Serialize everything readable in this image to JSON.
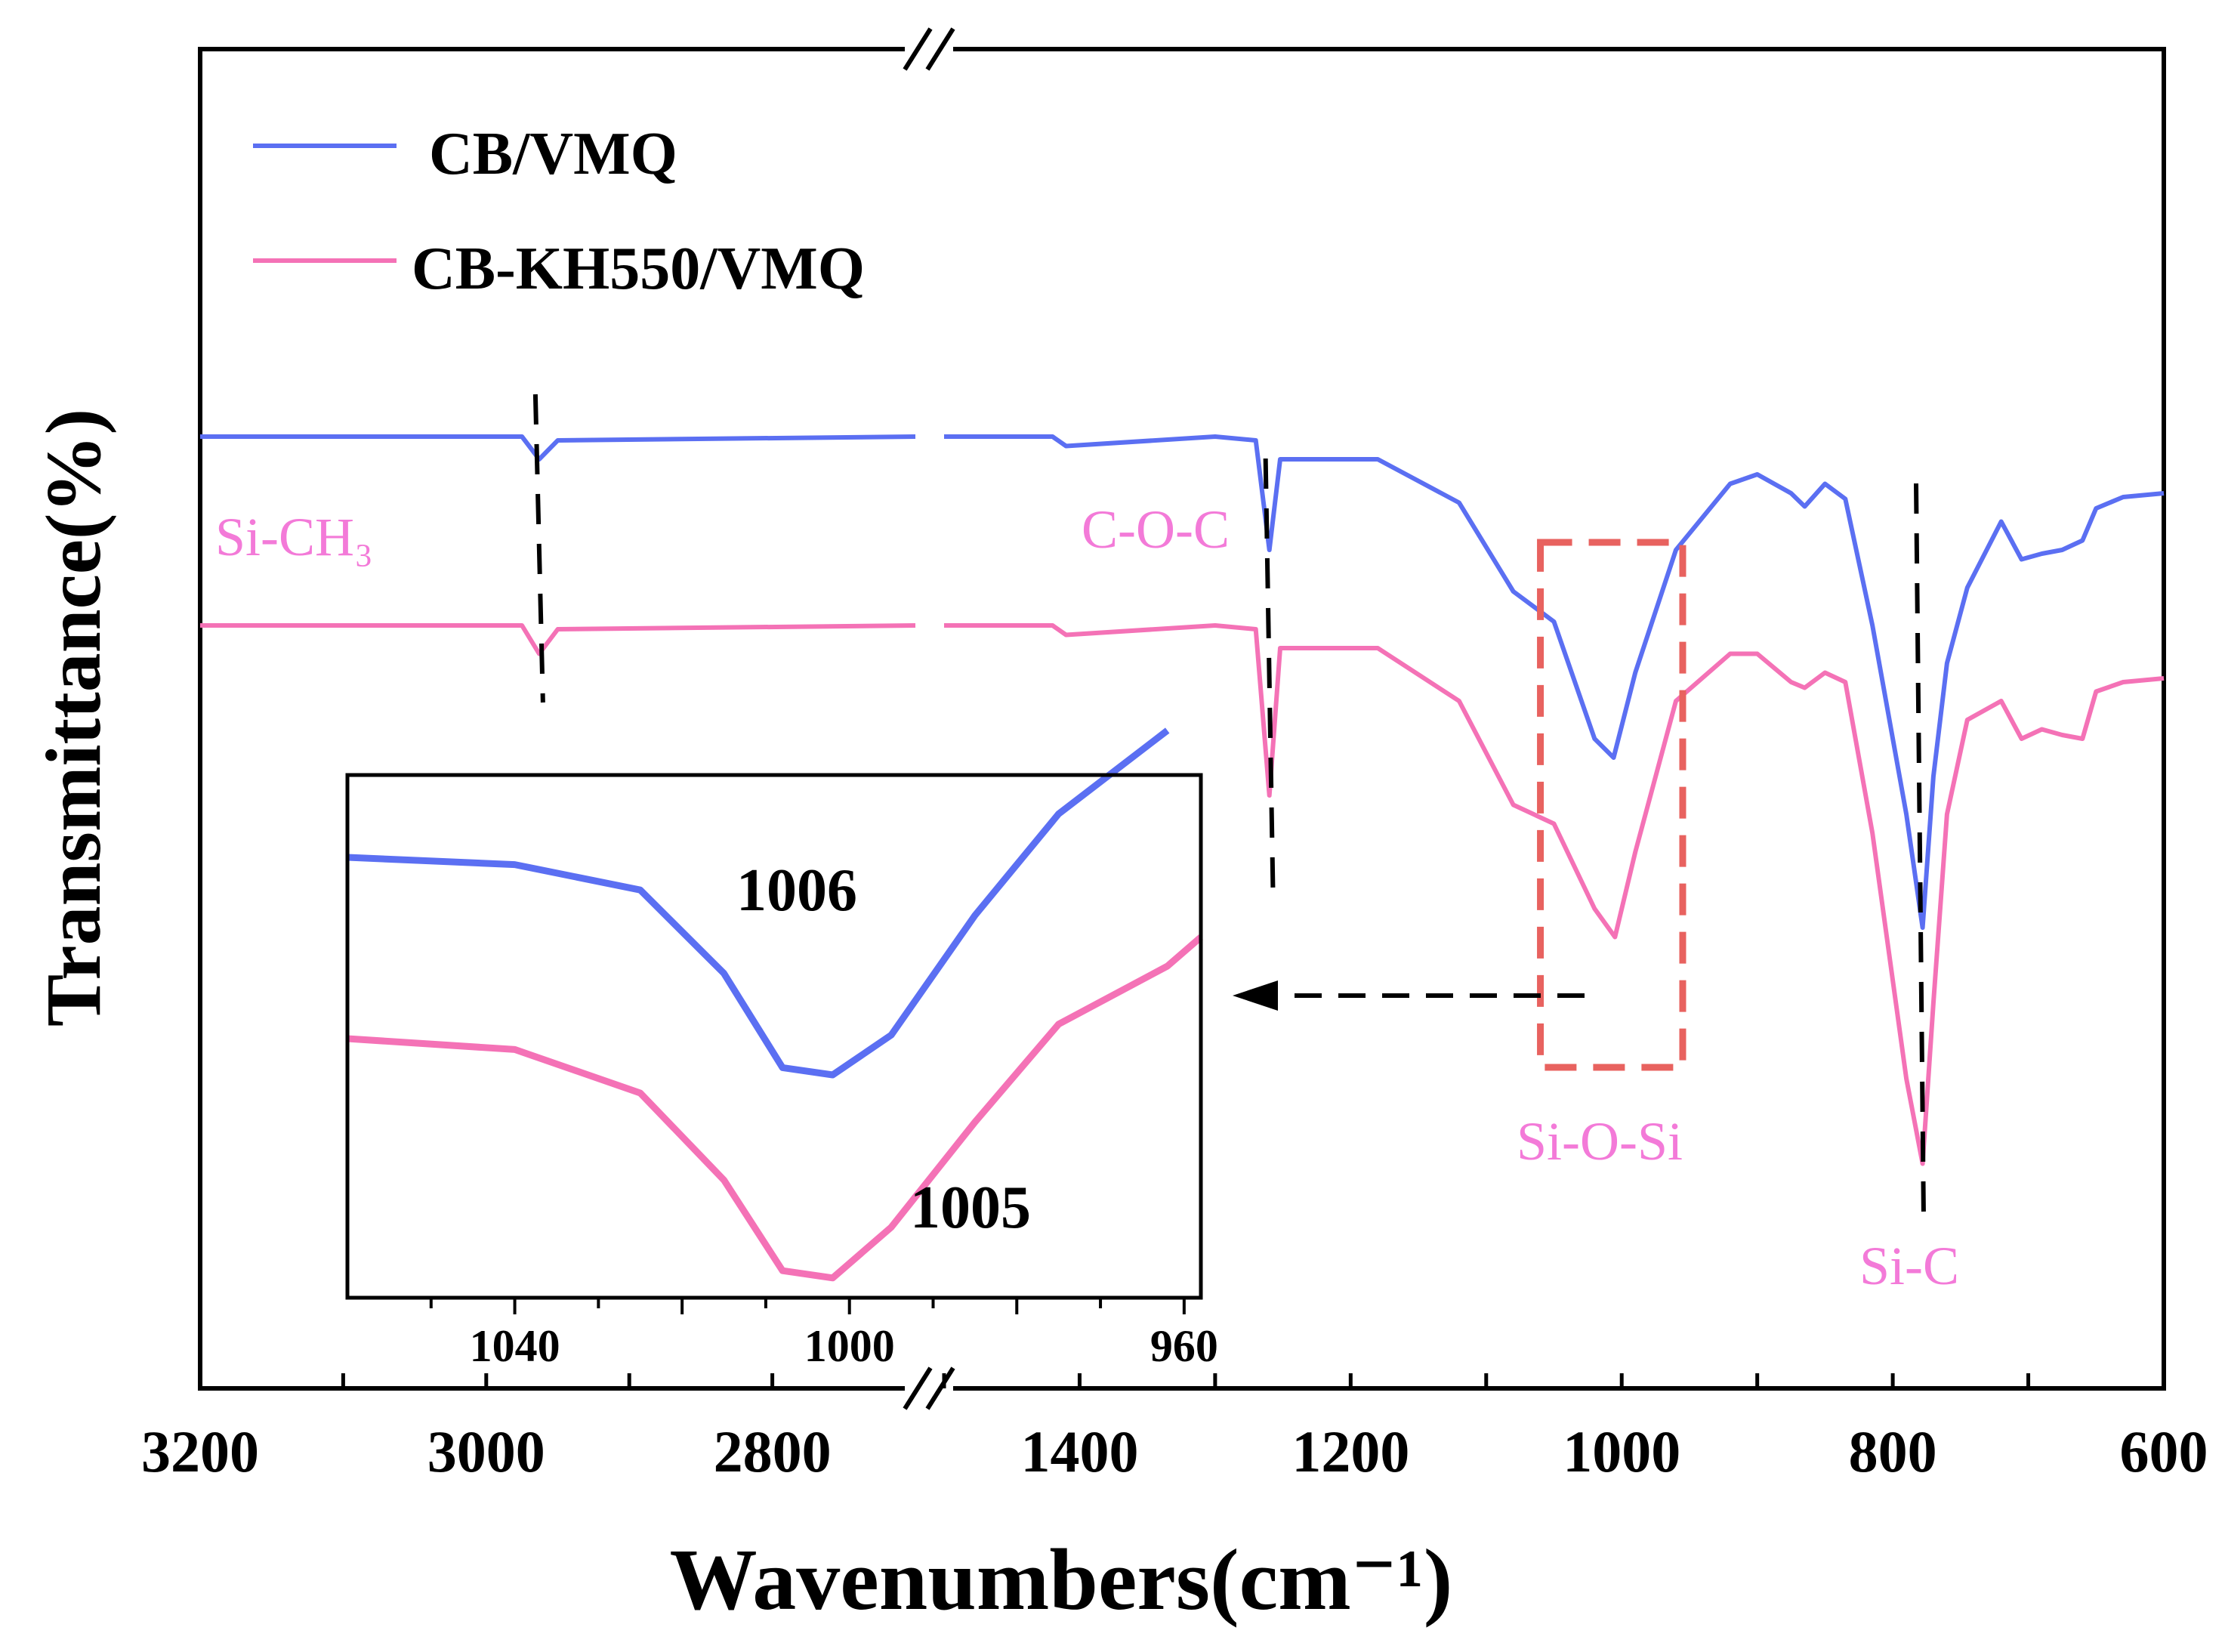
{
  "chart_data": {
    "type": "line",
    "title": "",
    "xlabel": "Wavenumbers(cm⁻¹)",
    "ylabel": "Transmittance(%)",
    "x_axis": {
      "reversed": true,
      "broken": true,
      "segments": [
        [
          3200,
          2700
        ],
        [
          1500,
          600
        ]
      ],
      "tick_labels": [
        "3200",
        "3000",
        "2800",
        "1400",
        "1200",
        "1000",
        "800",
        "600"
      ]
    },
    "y_axis": {
      "ticks_shown": false
    },
    "series": [
      {
        "name": "CB/VMQ",
        "color": "#5b6ff2",
        "points": [
          [
            3200,
            0.0
          ],
          [
            2975,
            0.0
          ],
          [
            2963,
            0.12
          ],
          [
            2950,
            0.02
          ],
          [
            2700,
            0.0
          ],
          [
            1500,
            0.0
          ],
          [
            1420,
            0.0
          ],
          [
            1410,
            0.05
          ],
          [
            1300,
            0.0
          ],
          [
            1270,
            0.02
          ],
          [
            1260,
            0.6
          ],
          [
            1252,
            0.12
          ],
          [
            1180,
            0.12
          ],
          [
            1120,
            0.35
          ],
          [
            1080,
            0.82
          ],
          [
            1050,
            0.98
          ],
          [
            1020,
            1.6
          ],
          [
            1006,
            1.7
          ],
          [
            990,
            1.25
          ],
          [
            960,
            0.6
          ],
          [
            920,
            0.25
          ],
          [
            900,
            0.2
          ],
          [
            875,
            0.3
          ],
          [
            865,
            0.37
          ],
          [
            850,
            0.25
          ],
          [
            835,
            0.33
          ],
          [
            815,
            1.0
          ],
          [
            790,
            2.0
          ],
          [
            778,
            2.6
          ],
          [
            770,
            1.8
          ],
          [
            760,
            1.2
          ],
          [
            745,
            0.8
          ],
          [
            720,
            0.45
          ],
          [
            705,
            0.65
          ],
          [
            690,
            0.62
          ],
          [
            675,
            0.6
          ],
          [
            660,
            0.55
          ],
          [
            650,
            0.38
          ],
          [
            630,
            0.32
          ],
          [
            600,
            0.3
          ]
        ]
      },
      {
        "name": "CB-KH550/VMQ",
        "color": "#f472b6",
        "points": [
          [
            3200,
            1.0
          ],
          [
            2975,
            1.0
          ],
          [
            2963,
            1.15
          ],
          [
            2950,
            1.02
          ],
          [
            2700,
            1.0
          ],
          [
            1500,
            1.0
          ],
          [
            1420,
            1.0
          ],
          [
            1410,
            1.05
          ],
          [
            1300,
            1.0
          ],
          [
            1270,
            1.02
          ],
          [
            1260,
            1.9
          ],
          [
            1252,
            1.12
          ],
          [
            1180,
            1.12
          ],
          [
            1120,
            1.4
          ],
          [
            1080,
            1.95
          ],
          [
            1050,
            2.05
          ],
          [
            1020,
            2.5
          ],
          [
            1005,
            2.65
          ],
          [
            990,
            2.2
          ],
          [
            960,
            1.4
          ],
          [
            920,
            1.15
          ],
          [
            900,
            1.15
          ],
          [
            875,
            1.3
          ],
          [
            865,
            1.33
          ],
          [
            850,
            1.25
          ],
          [
            835,
            1.3
          ],
          [
            815,
            2.1
          ],
          [
            790,
            3.4
          ],
          [
            778,
            3.85
          ],
          [
            770,
            3.0
          ],
          [
            760,
            2.0
          ],
          [
            745,
            1.5
          ],
          [
            720,
            1.4
          ],
          [
            705,
            1.6
          ],
          [
            690,
            1.55
          ],
          [
            675,
            1.58
          ],
          [
            660,
            1.6
          ],
          [
            650,
            1.35
          ],
          [
            630,
            1.3
          ],
          [
            600,
            1.28
          ]
        ]
      }
    ],
    "legend": {
      "position": "top-left",
      "entries": [
        "CB/VMQ",
        "CB-KH550/VMQ"
      ]
    },
    "annotations": [
      {
        "label": "Si-CH₃",
        "x": 2963
      },
      {
        "label": "C-O-C",
        "x": 1260
      },
      {
        "label": "Si-O-Si",
        "x": 1006
      },
      {
        "label": "Si-C",
        "x": 780
      }
    ],
    "marker_lines_x": [
      2963,
      1260,
      780
    ],
    "highlight_box_x": [
      1060,
      955
    ],
    "inset": {
      "x_range": [
        1060,
        958
      ],
      "tick_labels": [
        "1040",
        "1000",
        "960"
      ],
      "peak_labels": [
        "1006",
        "1005"
      ],
      "series": [
        {
          "name": "CB/VMQ",
          "points": [
            [
              1060,
              0.0
            ],
            [
              1040,
              0.02
            ],
            [
              1025,
              0.09
            ],
            [
              1015,
              0.32
            ],
            [
              1008,
              0.58
            ],
            [
              1002,
              0.6
            ],
            [
              995,
              0.49
            ],
            [
              985,
              0.16
            ],
            [
              975,
              -0.12
            ],
            [
              962,
              -0.35
            ]
          ]
        },
        {
          "name": "CB-KH550/VMQ",
          "points": [
            [
              1060,
              0.5
            ],
            [
              1040,
              0.53
            ],
            [
              1025,
              0.65
            ],
            [
              1015,
              0.89
            ],
            [
              1008,
              1.14
            ],
            [
              1002,
              1.16
            ],
            [
              995,
              1.02
            ],
            [
              985,
              0.73
            ],
            [
              975,
              0.46
            ],
            [
              962,
              0.3
            ],
            [
              958,
              0.22
            ]
          ]
        }
      ]
    }
  }
}
